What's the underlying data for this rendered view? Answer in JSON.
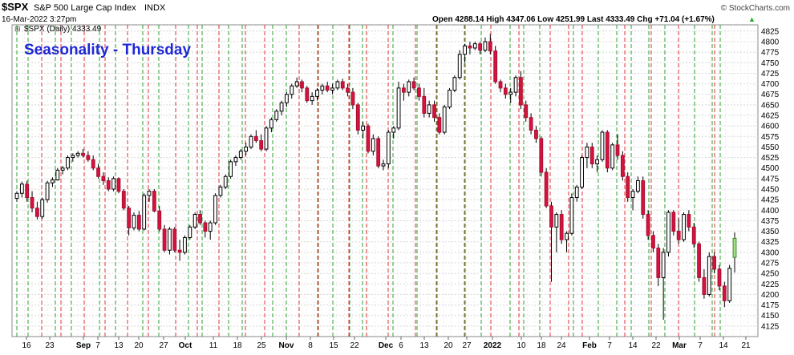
{
  "header": {
    "symbol": "$SPX",
    "description": "S&P 500 Large Cap Index",
    "exchange": "INDX",
    "datetime": "16-Mar-2022 3:27pm",
    "ohlc_text": "Open 4288.14  High 4347.06  Low 4251.99  Last 4333.49  Chg +71.04 (+1.67%)",
    "arrow": "▲",
    "copyright": "© StockCharts.com"
  },
  "legend": {
    "text": "$SPX (Daily) 4333.49"
  },
  "title": "Seasonality - Thursday",
  "chart_data": {
    "type": "candlestick",
    "title": "Seasonality - Thursday",
    "ylim": [
      4100,
      4840
    ],
    "yticks": [
      4125,
      4150,
      4175,
      4200,
      4225,
      4250,
      4275,
      4300,
      4325,
      4350,
      4375,
      4400,
      4425,
      4450,
      4475,
      4500,
      4525,
      4550,
      4575,
      4600,
      4625,
      4650,
      4675,
      4700,
      4725,
      4750,
      4775,
      4800,
      4825
    ],
    "xticks": [
      "16",
      "23",
      "Sep",
      "7",
      "13",
      "20",
      "27",
      "Oct",
      "11",
      "18",
      "25",
      "Nov",
      "8",
      "15",
      "22",
      "Dec",
      "6",
      "13",
      "20",
      "27",
      "2022",
      "10",
      "18",
      "24",
      "Feb",
      "7",
      "14",
      "22",
      "Mar",
      "7",
      "14",
      "21"
    ],
    "vertical_markers": {
      "green": [
        21,
        35,
        69,
        89,
        124,
        144,
        178,
        198,
        235,
        252,
        285,
        302,
        340,
        357,
        396,
        415,
        436,
        452,
        490,
        520,
        544,
        579,
        600,
        636,
        653,
        673,
        715,
        746,
        769,
        787,
        809,
        829,
        866,
        888,
        898
      ],
      "red": [
        52,
        76,
        105,
        131,
        159,
        185,
        219,
        246,
        273,
        306,
        330,
        373,
        397,
        435,
        457,
        484,
        518,
        545,
        580,
        612,
        647,
        686,
        709,
        726,
        779,
        812,
        846,
        891
      ],
      "note": "green dashed = week start markers, red dashed = Thursday markers"
    },
    "candles": [
      [
        4428,
        4445,
        4420,
        4440
      ],
      [
        4440,
        4468,
        4430,
        4462
      ],
      [
        4462,
        4470,
        4420,
        4430
      ],
      [
        4430,
        4445,
        4395,
        4405
      ],
      [
        4405,
        4420,
        4378,
        4385
      ],
      [
        4385,
        4430,
        4380,
        4425
      ],
      [
        4425,
        4470,
        4418,
        4465
      ],
      [
        4465,
        4478,
        4455,
        4472
      ],
      [
        4472,
        4500,
        4470,
        4495
      ],
      [
        4495,
        4505,
        4485,
        4500
      ],
      [
        4500,
        4530,
        4495,
        4525
      ],
      [
        4525,
        4535,
        4515,
        4530
      ],
      [
        4530,
        4540,
        4525,
        4535
      ],
      [
        4535,
        4545,
        4525,
        4530
      ],
      [
        4530,
        4540,
        4515,
        4520
      ],
      [
        4520,
        4530,
        4495,
        4500
      ],
      [
        4500,
        4510,
        4475,
        4480
      ],
      [
        4480,
        4490,
        4460,
        4470
      ],
      [
        4470,
        4478,
        4445,
        4450
      ],
      [
        4450,
        4480,
        4445,
        4475
      ],
      [
        4475,
        4478,
        4440,
        4445
      ],
      [
        4445,
        4450,
        4400,
        4405
      ],
      [
        4405,
        4410,
        4340,
        4358
      ],
      [
        4358,
        4395,
        4352,
        4388
      ],
      [
        4388,
        4398,
        4350,
        4355
      ],
      [
        4355,
        4440,
        4352,
        4435
      ],
      [
        4435,
        4450,
        4420,
        4445
      ],
      [
        4445,
        4450,
        4395,
        4398
      ],
      [
        4398,
        4410,
        4350,
        4355
      ],
      [
        4355,
        4365,
        4300,
        4305
      ],
      [
        4305,
        4360,
        4295,
        4355
      ],
      [
        4355,
        4360,
        4300,
        4305
      ],
      [
        4305,
        4330,
        4280,
        4300
      ],
      [
        4300,
        4340,
        4295,
        4335
      ],
      [
        4335,
        4365,
        4330,
        4360
      ],
      [
        4360,
        4395,
        4355,
        4390
      ],
      [
        4390,
        4400,
        4365,
        4370
      ],
      [
        4370,
        4375,
        4335,
        4350
      ],
      [
        4350,
        4375,
        4330,
        4370
      ],
      [
        4370,
        4440,
        4365,
        4435
      ],
      [
        4435,
        4460,
        4430,
        4455
      ],
      [
        4455,
        4485,
        4450,
        4480
      ],
      [
        4480,
        4520,
        4475,
        4515
      ],
      [
        4515,
        4530,
        4505,
        4525
      ],
      [
        4525,
        4545,
        4520,
        4540
      ],
      [
        4540,
        4560,
        4530,
        4550
      ],
      [
        4550,
        4580,
        4545,
        4575
      ],
      [
        4575,
        4590,
        4560,
        4565
      ],
      [
        4565,
        4580,
        4540,
        4545
      ],
      [
        4545,
        4600,
        4540,
        4595
      ],
      [
        4595,
        4620,
        4585,
        4615
      ],
      [
        4615,
        4640,
        4610,
        4635
      ],
      [
        4635,
        4660,
        4625,
        4655
      ],
      [
        4655,
        4680,
        4645,
        4675
      ],
      [
        4675,
        4700,
        4665,
        4695
      ],
      [
        4695,
        4715,
        4690,
        4705
      ],
      [
        4705,
        4710,
        4680,
        4690
      ],
      [
        4690,
        4695,
        4655,
        4660
      ],
      [
        4660,
        4680,
        4650,
        4670
      ],
      [
        4670,
        4690,
        4660,
        4685
      ],
      [
        4685,
        4700,
        4675,
        4695
      ],
      [
        4695,
        4705,
        4680,
        4685
      ],
      [
        4685,
        4700,
        4675,
        4690
      ],
      [
        4690,
        4710,
        4685,
        4705
      ],
      [
        4705,
        4712,
        4685,
        4690
      ],
      [
        4690,
        4700,
        4670,
        4680
      ],
      [
        4680,
        4690,
        4640,
        4650
      ],
      [
        4650,
        4655,
        4580,
        4590
      ],
      [
        4590,
        4610,
        4570,
        4600
      ],
      [
        4600,
        4605,
        4535,
        4540
      ],
      [
        4540,
        4580,
        4530,
        4570
      ],
      [
        4570,
        4575,
        4500,
        4505
      ],
      [
        4505,
        4520,
        4495,
        4510
      ],
      [
        4510,
        4590,
        4500,
        4585
      ],
      [
        4585,
        4600,
        4570,
        4595
      ],
      [
        4595,
        4705,
        4590,
        4690
      ],
      [
        4690,
        4700,
        4660,
        4680
      ],
      [
        4680,
        4710,
        4670,
        4705
      ],
      [
        4705,
        4715,
        4685,
        4690
      ],
      [
        4690,
        4700,
        4660,
        4670
      ],
      [
        4670,
        4690,
        4620,
        4630
      ],
      [
        4630,
        4660,
        4620,
        4650
      ],
      [
        4650,
        4660,
        4610,
        4620
      ],
      [
        4620,
        4630,
        4580,
        4585
      ],
      [
        4585,
        4650,
        4580,
        4645
      ],
      [
        4645,
        4690,
        4640,
        4685
      ],
      [
        4685,
        4720,
        4680,
        4715
      ],
      [
        4715,
        4780,
        4710,
        4770
      ],
      [
        4770,
        4795,
        4750,
        4790
      ],
      [
        4790,
        4800,
        4770,
        4785
      ],
      [
        4785,
        4800,
        4780,
        4795
      ],
      [
        4795,
        4800,
        4770,
        4780
      ],
      [
        4780,
        4810,
        4775,
        4800
      ],
      [
        4800,
        4818,
        4770,
        4778
      ],
      [
        4778,
        4790,
        4700,
        4705
      ],
      [
        4705,
        4710,
        4680,
        4690
      ],
      [
        4690,
        4700,
        4665,
        4675
      ],
      [
        4675,
        4690,
        4655,
        4680
      ],
      [
        4680,
        4720,
        4670,
        4715
      ],
      [
        4715,
        4730,
        4640,
        4650
      ],
      [
        4650,
        4660,
        4610,
        4620
      ],
      [
        4620,
        4630,
        4580,
        4590
      ],
      [
        4590,
        4600,
        4560,
        4570
      ],
      [
        4570,
        4575,
        4480,
        4490
      ],
      [
        4490,
        4500,
        4405,
        4410
      ],
      [
        4410,
        4420,
        4230,
        4360
      ],
      [
        4360,
        4395,
        4300,
        4390
      ],
      [
        4390,
        4400,
        4320,
        4330
      ],
      [
        4330,
        4350,
        4300,
        4345
      ],
      [
        4345,
        4440,
        4340,
        4430
      ],
      [
        4430,
        4460,
        4420,
        4455
      ],
      [
        4455,
        4530,
        4450,
        4525
      ],
      [
        4525,
        4560,
        4500,
        4550
      ],
      [
        4550,
        4560,
        4500,
        4510
      ],
      [
        4510,
        4530,
        4490,
        4520
      ],
      [
        4520,
        4590,
        4515,
        4585
      ],
      [
        4585,
        4590,
        4490,
        4500
      ],
      [
        4500,
        4560,
        4495,
        4555
      ],
      [
        4555,
        4580,
        4520,
        4530
      ],
      [
        4530,
        4540,
        4470,
        4480
      ],
      [
        4480,
        4490,
        4420,
        4430
      ],
      [
        4430,
        4450,
        4400,
        4445
      ],
      [
        4445,
        4480,
        4440,
        4470
      ],
      [
        4470,
        4480,
        4380,
        4390
      ],
      [
        4390,
        4400,
        4330,
        4340
      ],
      [
        4340,
        4350,
        4300,
        4310
      ],
      [
        4310,
        4320,
        4220,
        4240
      ],
      [
        4240,
        4310,
        4140,
        4300
      ],
      [
        4300,
        4400,
        4290,
        4395
      ],
      [
        4395,
        4400,
        4340,
        4350
      ],
      [
        4350,
        4380,
        4320,
        4330
      ],
      [
        4330,
        4395,
        4325,
        4390
      ],
      [
        4390,
        4400,
        4350,
        4360
      ],
      [
        4360,
        4370,
        4310,
        4320
      ],
      [
        4320,
        4325,
        4230,
        4240
      ],
      [
        4240,
        4260,
        4190,
        4200
      ],
      [
        4200,
        4300,
        4195,
        4290
      ],
      [
        4290,
        4300,
        4250,
        4260
      ],
      [
        4260,
        4270,
        4210,
        4220
      ],
      [
        4220,
        4230,
        4170,
        4185
      ],
      [
        4185,
        4270,
        4180,
        4262
      ],
      [
        4288,
        4347,
        4252,
        4333
      ]
    ]
  }
}
